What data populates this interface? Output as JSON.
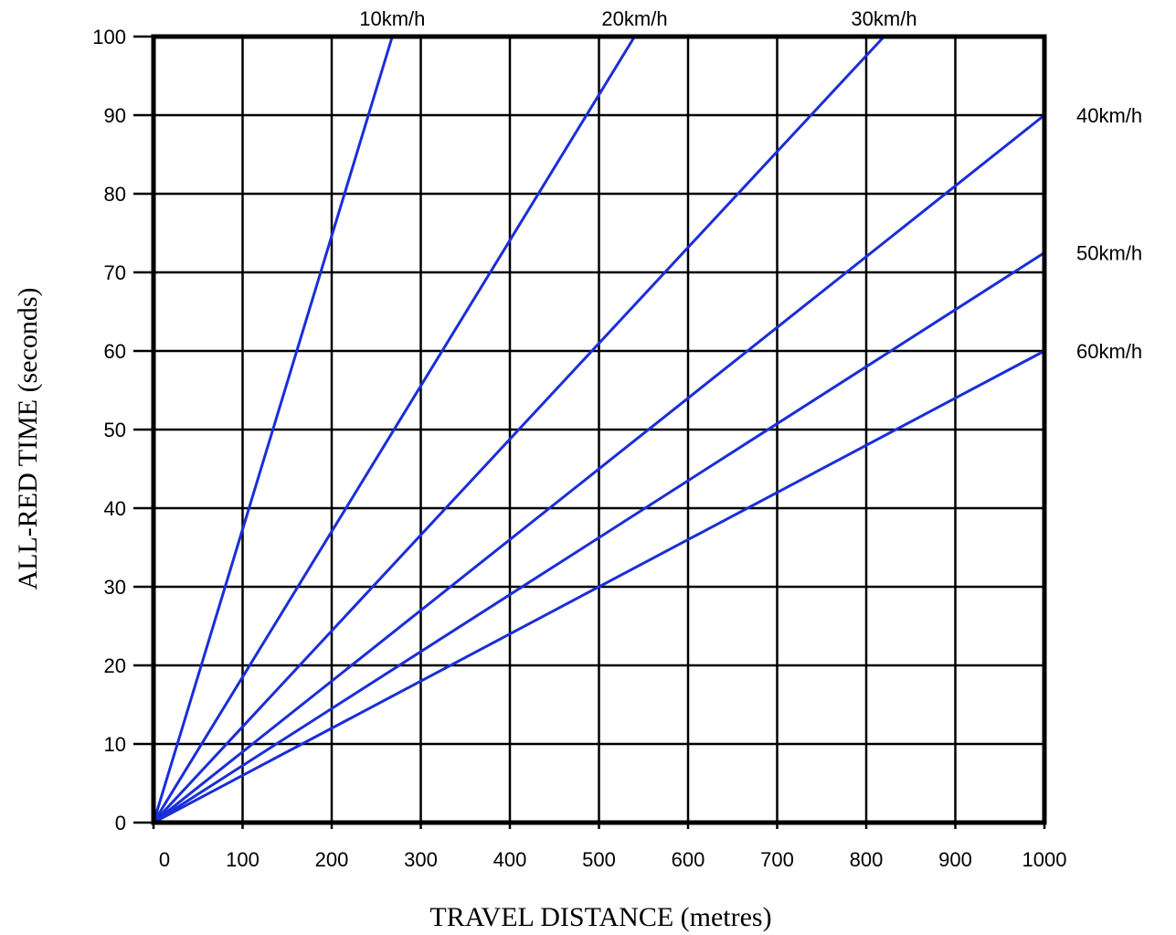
{
  "chart_data": {
    "type": "line",
    "xlabel": "TRAVEL DISTANCE (metres)",
    "ylabel": "ALL-RED TIME (seconds)",
    "xlim": [
      0,
      1000
    ],
    "ylim": [
      0,
      100
    ],
    "x_ticks": [
      "0",
      "100",
      "200",
      "300",
      "400",
      "500",
      "600",
      "700",
      "800",
      "900",
      "1000"
    ],
    "y_ticks": [
      "0",
      "10",
      "20",
      "30",
      "40",
      "50",
      "60",
      "70",
      "80",
      "90",
      "100"
    ],
    "grid": true,
    "line_color": "#1a2ed8",
    "series": [
      {
        "name": "10km/h",
        "x": [
          0,
          268
        ],
        "y": [
          0,
          100
        ]
      },
      {
        "name": "20km/h",
        "x": [
          0,
          540
        ],
        "y": [
          0,
          100
        ]
      },
      {
        "name": "30km/h",
        "x": [
          0,
          820
        ],
        "y": [
          0,
          100
        ]
      },
      {
        "name": "40km/h",
        "x": [
          0,
          1000
        ],
        "y": [
          0,
          90
        ]
      },
      {
        "name": "50km/h",
        "x": [
          0,
          1000
        ],
        "y": [
          0,
          72.5
        ]
      },
      {
        "name": "60km/h",
        "x": [
          0,
          1000
        ],
        "y": [
          0,
          60
        ]
      }
    ]
  }
}
